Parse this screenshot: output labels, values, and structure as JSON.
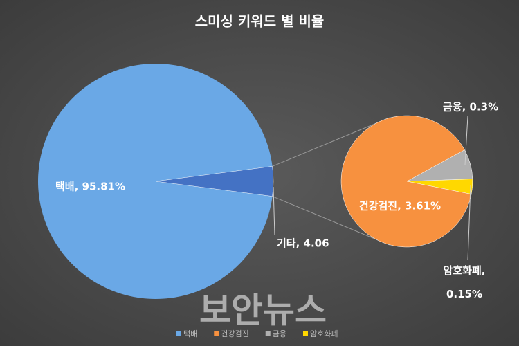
{
  "chart_data": {
    "type": "pie-of-pie",
    "title": "스미싱 키워드 별 비율",
    "categories": [
      "택배",
      "건강검진",
      "금융",
      "암호화폐"
    ],
    "values": [
      95.81,
      3.61,
      0.3,
      0.15
    ],
    "value_labels": [
      "택배, 95.81%",
      "건강검진, 3.61%",
      "금융, 0.3%",
      "암호화폐, 0.15%"
    ],
    "colors": [
      "#6aa8e6",
      "#f7913f",
      "#b0b0b0",
      "#ffd800"
    ],
    "other": {
      "name": "기타",
      "value": 4.06,
      "value_label": "기타, 4.06",
      "color": "#4472c4"
    },
    "legend": "bottom"
  },
  "watermark": "보안뉴스"
}
